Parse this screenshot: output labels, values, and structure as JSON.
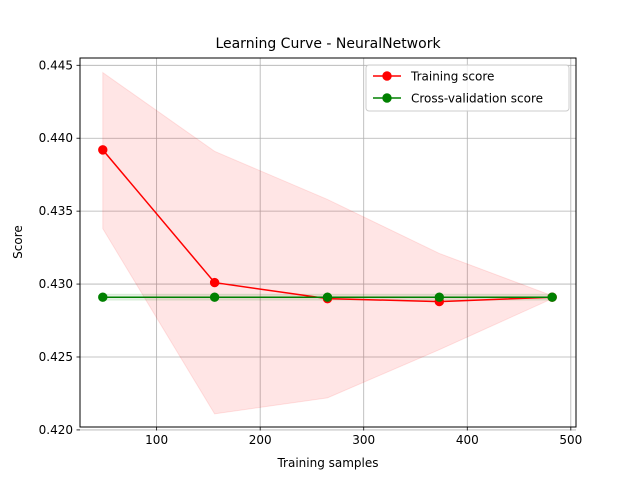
{
  "chart_data": {
    "type": "line",
    "title": "Learning Curve - NeuralNetwork",
    "xlabel": "Training samples",
    "ylabel": "Score",
    "xlim": [
      26,
      505
    ],
    "ylim": [
      0.4202,
      0.4455
    ],
    "xticks": [
      100,
      200,
      300,
      400,
      500
    ],
    "yticks": [
      0.42,
      0.425,
      0.43,
      0.435,
      0.44,
      0.445
    ],
    "ytick_labels": [
      "0.420",
      "0.425",
      "0.430",
      "0.435",
      "0.440",
      "0.445"
    ],
    "grid": true,
    "legend_position": "top-right",
    "x": [
      48,
      156,
      265,
      373,
      482
    ],
    "series": [
      {
        "name": "Training score",
        "color": "#ff0000",
        "band_color": "#ff0000",
        "values": [
          0.4392,
          0.4301,
          0.429,
          0.4288,
          0.4291
        ],
        "band_lower": [
          0.4338,
          0.4211,
          0.4222,
          0.4255,
          0.429
        ],
        "band_upper": [
          0.4445,
          0.4391,
          0.4358,
          0.4321,
          0.4292
        ]
      },
      {
        "name": "Cross-validation score",
        "color": "#008000",
        "band_color": "#008000",
        "values": [
          0.4291,
          0.4291,
          0.4291,
          0.4291,
          0.4291
        ],
        "band_lower": [
          0.4289,
          0.4289,
          0.4289,
          0.4289,
          0.4289
        ],
        "band_upper": [
          0.4293,
          0.4293,
          0.4293,
          0.4293,
          0.4293
        ]
      }
    ]
  }
}
